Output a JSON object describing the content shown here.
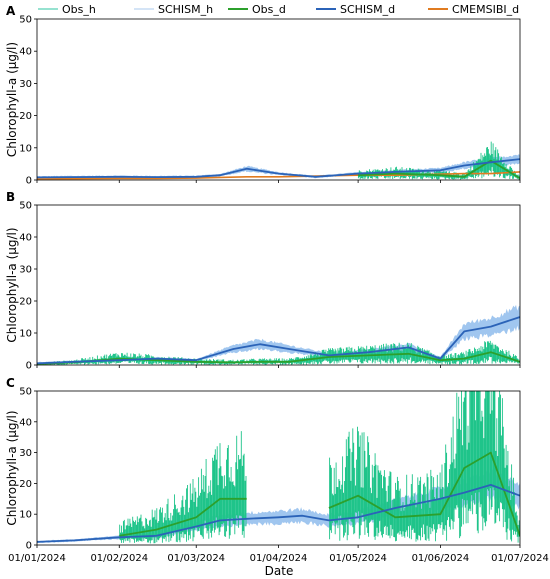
{
  "figure": {
    "xlabel": "Date",
    "legend": [
      {
        "label": "Obs_h",
        "color": "#2ec4a0",
        "width": 1
      },
      {
        "label": "SCHISM_h",
        "color": "#a9c8ee",
        "width": 1
      },
      {
        "label": "Obs_d",
        "color": "#2ca02c",
        "width": 2
      },
      {
        "label": "SCHISM_d",
        "color": "#2b63b8",
        "width": 2
      },
      {
        "label": "CMEMSIBI_d",
        "color": "#e07b20",
        "width": 2
      }
    ],
    "colors": {
      "obs_h": "#1fc48a",
      "schism_h": "#8fbcec",
      "obs_d": "#2ca02c",
      "schism_d": "#2b63b8",
      "cmems_d": "#e07b20"
    }
  },
  "chart_data": [
    {
      "type": "line",
      "panel_label": "A",
      "ylabel": "Chlorophyll-a (μg/l)",
      "ylim": [
        0,
        50
      ],
      "yticks": [
        0,
        10,
        20,
        30,
        40,
        50
      ],
      "xlim": [
        "2024-01-01",
        "2024-07-01"
      ],
      "x": [
        "2024-01-01",
        "2024-01-15",
        "2024-02-01",
        "2024-02-15",
        "2024-03-01",
        "2024-03-10",
        "2024-03-20",
        "2024-04-01",
        "2024-04-15",
        "2024-05-01",
        "2024-05-15",
        "2024-06-01",
        "2024-06-10",
        "2024-06-20",
        "2024-07-01"
      ],
      "series": [
        {
          "name": "SCHISM_d",
          "values": [
            0.8,
            0.9,
            1.0,
            0.9,
            1.0,
            1.5,
            3.5,
            2.0,
            1.0,
            2.0,
            2.5,
            3.0,
            4.5,
            5.5,
            6.5
          ]
        },
        {
          "name": "Obs_d",
          "values": [
            null,
            null,
            null,
            null,
            null,
            null,
            null,
            null,
            null,
            1.5,
            2.0,
            1.5,
            1.0,
            6.0,
            0.5
          ]
        },
        {
          "name": "CMEMSIBI_d",
          "values": [
            0.3,
            0.4,
            0.5,
            0.5,
            0.6,
            0.8,
            1.0,
            1.0,
            1.2,
            1.5,
            1.5,
            1.8,
            2.0,
            2.0,
            2.5
          ]
        }
      ]
    },
    {
      "type": "line",
      "panel_label": "B",
      "ylabel": "Chlorophyll-a (μg/l)",
      "ylim": [
        0,
        50
      ],
      "yticks": [
        0,
        10,
        20,
        30,
        40,
        50
      ],
      "xlim": [
        "2024-01-01",
        "2024-07-01"
      ],
      "x": [
        "2024-01-01",
        "2024-01-15",
        "2024-02-01",
        "2024-02-15",
        "2024-03-01",
        "2024-03-15",
        "2024-03-25",
        "2024-04-05",
        "2024-04-20",
        "2024-05-05",
        "2024-05-20",
        "2024-06-01",
        "2024-06-10",
        "2024-06-20",
        "2024-07-01"
      ],
      "series": [
        {
          "name": "SCHISM_d",
          "values": [
            0.5,
            1.0,
            1.5,
            2.0,
            1.5,
            5.0,
            6.5,
            5.0,
            3.0,
            4.0,
            5.5,
            2.0,
            10.5,
            12.0,
            15.0
          ]
        },
        {
          "name": "Obs_d",
          "values": [
            0.3,
            0.8,
            2.0,
            1.5,
            1.0,
            0.8,
            1.0,
            1.0,
            2.5,
            3.0,
            3.5,
            1.5,
            2.0,
            4.0,
            1.0
          ]
        }
      ]
    },
    {
      "type": "line",
      "panel_label": "C",
      "ylabel": "Chlorophyll-a (μg/l)",
      "ylim": [
        0,
        50
      ],
      "yticks": [
        0,
        10,
        20,
        30,
        40,
        50
      ],
      "xlim": [
        "2024-01-01",
        "2024-07-01"
      ],
      "xticks": [
        "01/01/2024",
        "01/02/2024",
        "01/03/2024",
        "01/04/2024",
        "01/05/2024",
        "01/06/2024",
        "01/07/2024"
      ],
      "x": [
        "2024-01-01",
        "2024-01-15",
        "2024-02-01",
        "2024-02-15",
        "2024-03-01",
        "2024-03-10",
        "2024-03-20",
        "2024-04-01",
        "2024-04-10",
        "2024-04-20",
        "2024-05-01",
        "2024-05-15",
        "2024-06-01",
        "2024-06-10",
        "2024-06-20",
        "2024-07-01"
      ],
      "series": [
        {
          "name": "SCHISM_d",
          "values": [
            1.0,
            1.5,
            2.5,
            3.0,
            6.0,
            8.0,
            8.5,
            9.0,
            9.5,
            8.0,
            9.0,
            12.0,
            15.0,
            17.0,
            19.5,
            16.0
          ]
        },
        {
          "name": "Obs_d",
          "values": [
            null,
            null,
            3.0,
            5.0,
            9.0,
            15.0,
            15.0,
            null,
            null,
            12.0,
            16.0,
            9.0,
            10.0,
            25.0,
            30.0,
            3.0
          ]
        }
      ]
    }
  ]
}
